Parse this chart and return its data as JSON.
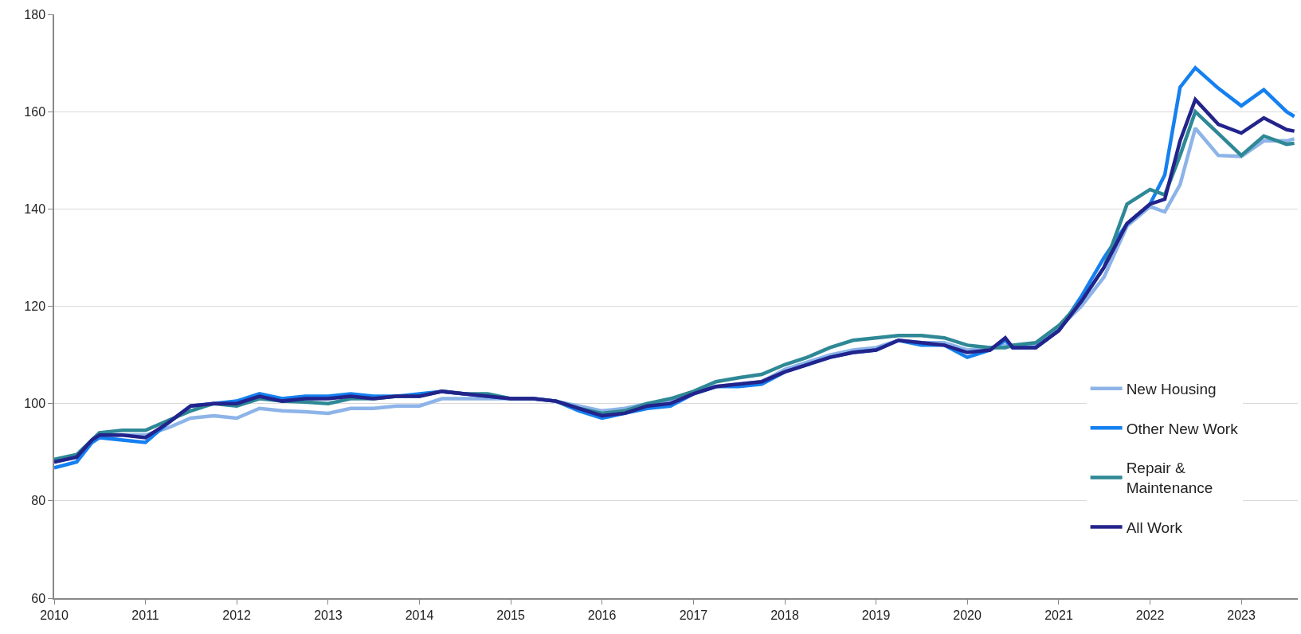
{
  "chart_data": {
    "type": "line",
    "x": [
      "2010-01",
      "2010-04",
      "2010-06",
      "2010-07",
      "2010-10",
      "2011-01",
      "2011-04",
      "2011-07",
      "2011-10",
      "2012-01",
      "2012-04",
      "2012-07",
      "2012-10",
      "2013-01",
      "2013-04",
      "2013-07",
      "2013-10",
      "2014-01",
      "2014-04",
      "2014-07",
      "2014-10",
      "2015-01",
      "2015-04",
      "2015-07",
      "2015-10",
      "2016-01",
      "2016-04",
      "2016-07",
      "2016-10",
      "2017-01",
      "2017-04",
      "2017-07",
      "2017-10",
      "2018-01",
      "2018-04",
      "2018-07",
      "2018-10",
      "2019-01",
      "2019-04",
      "2019-07",
      "2019-10",
      "2020-01",
      "2020-04",
      "2020-06",
      "2020-07",
      "2020-10",
      "2021-01",
      "2021-04",
      "2021-07",
      "2021-10",
      "2022-01",
      "2022-03",
      "2022-05",
      "2022-07",
      "2022-10",
      "2023-01",
      "2023-04",
      "2023-07",
      "2023-08"
    ],
    "series": [
      {
        "name": "New Housing",
        "color": "#8db4e8",
        "values": [
          88,
          89,
          92,
          93,
          93.5,
          93.5,
          95,
          97,
          97.5,
          97,
          99,
          98.5,
          98.3,
          98,
          99,
          99,
          99.5,
          99.5,
          101,
          101,
          101,
          101,
          101,
          100.5,
          99.5,
          98.5,
          99,
          100,
          100.5,
          102,
          103.5,
          104,
          104.5,
          107,
          108.5,
          110,
          111,
          111.5,
          113,
          112.5,
          112.5,
          111,
          111.5,
          112,
          111.5,
          112,
          115.5,
          120,
          126,
          136.5,
          140.5,
          139.4,
          145,
          156.6,
          151,
          150.8,
          154,
          154,
          154.4
        ]
      },
      {
        "name": "Other New Work",
        "color": "#1580f0",
        "values": [
          86.8,
          88,
          92,
          93,
          92.5,
          92,
          96,
          99.5,
          100,
          100.5,
          102,
          101,
          101.5,
          101.5,
          102,
          101.5,
          101.5,
          102,
          102.5,
          102,
          101.5,
          101,
          101,
          100.5,
          98.5,
          97,
          98,
          99,
          99.5,
          102,
          103.5,
          103.5,
          104,
          106.5,
          108,
          109.5,
          110.5,
          111,
          113,
          112,
          112,
          109.5,
          111,
          113,
          111.5,
          111.5,
          115,
          122,
          130,
          137,
          141,
          147,
          165,
          169,
          164.8,
          161.2,
          164.5,
          160,
          159
        ]
      },
      {
        "name": "Repair & Maintenance",
        "color": "#2e8896",
        "values": [
          88.5,
          89.5,
          92.5,
          94,
          94.5,
          94.5,
          96.5,
          98.5,
          100,
          99.5,
          101,
          100.5,
          100.3,
          100,
          101,
          101,
          101.5,
          101.5,
          102.5,
          102,
          102,
          101,
          101,
          100.5,
          99,
          98,
          98.5,
          100,
          101,
          102.5,
          104.5,
          105.3,
          106,
          108,
          109.5,
          111.5,
          113,
          113.5,
          114,
          114,
          113.5,
          112,
          111.5,
          111.5,
          112,
          112.5,
          116,
          121,
          128,
          141,
          144,
          142.9,
          151,
          160,
          155.5,
          151,
          155,
          153.3,
          153.5
        ]
      },
      {
        "name": "All Work",
        "color": "#23238c",
        "values": [
          88,
          89,
          92.5,
          93.5,
          93.5,
          93,
          96,
          99.5,
          100,
          100,
          101.5,
          100.5,
          101,
          101,
          101.5,
          101,
          101.5,
          101.5,
          102.5,
          102,
          101.5,
          101,
          101,
          100.5,
          99,
          97.5,
          98,
          99.5,
          100,
          102,
          103.5,
          104,
          104.5,
          106.5,
          108,
          109.5,
          110.5,
          111,
          113,
          112.5,
          112,
          110.5,
          111,
          113.5,
          111.5,
          111.5,
          115,
          121,
          128,
          137,
          141,
          142,
          154,
          162.5,
          157.4,
          155.6,
          158.7,
          156.3,
          156
        ]
      }
    ],
    "xlim": [
      "2010-01-01",
      "2023-08-15"
    ],
    "xticks": [
      {
        "value": "2010-01-01",
        "label": "2010"
      },
      {
        "value": "2011-01-01",
        "label": "2011"
      },
      {
        "value": "2012-01-01",
        "label": "2012"
      },
      {
        "value": "2013-01-01",
        "label": "2013"
      },
      {
        "value": "2014-01-01",
        "label": "2014"
      },
      {
        "value": "2015-01-01",
        "label": "2015"
      },
      {
        "value": "2016-01-01",
        "label": "2016"
      },
      {
        "value": "2017-01-01",
        "label": "2017"
      },
      {
        "value": "2018-01-01",
        "label": "2018"
      },
      {
        "value": "2019-01-01",
        "label": "2019"
      },
      {
        "value": "2020-01-01",
        "label": "2020"
      },
      {
        "value": "2021-01-01",
        "label": "2021"
      },
      {
        "value": "2022-01-01",
        "label": "2022"
      },
      {
        "value": "2023-01-01",
        "label": "2023"
      }
    ],
    "ylim": [
      60,
      180
    ],
    "yticks": [
      60,
      80,
      100,
      120,
      140,
      160,
      180
    ],
    "grid": "y",
    "legend": "right",
    "marker": "none",
    "line_style": "solid"
  }
}
